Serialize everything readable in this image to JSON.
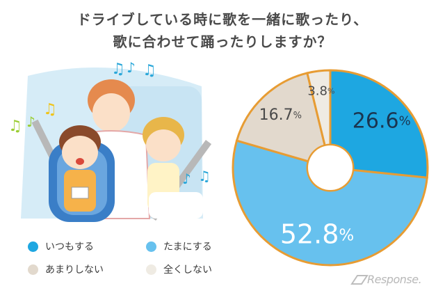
{
  "title": {
    "line1": "ドライブしている時に歌を一緒に歌ったり、",
    "line2": "歌に合わせて踊ったりしますか？"
  },
  "chart_data": {
    "type": "pie",
    "style": "donut",
    "start": "top, clockwise",
    "categories": [
      "いつもする",
      "たまにする",
      "あまりしない",
      "全くしない"
    ],
    "values": [
      26.6,
      52.8,
      16.7,
      3.8
    ],
    "labels": [
      "26.6",
      "52.8",
      "16.7",
      "3.8"
    ],
    "unit": "%",
    "colors": [
      "#1ea7e1",
      "#67c1ee",
      "#e2d9cd",
      "#efebe3"
    ],
    "separator_color": "#e79c33",
    "legend_position": "bottom-left"
  },
  "legend": [
    {
      "label": "いつもする",
      "color": "#1ea7e1"
    },
    {
      "label": "たまにする",
      "color": "#67c1ee"
    },
    {
      "label": "あまりしない",
      "color": "#e2d9cd"
    },
    {
      "label": "全くしない",
      "color": "#efebe3"
    }
  ],
  "watermark": {
    "text": "Response."
  },
  "icons": [
    "music-note-icon",
    "car-seat-illustration"
  ]
}
